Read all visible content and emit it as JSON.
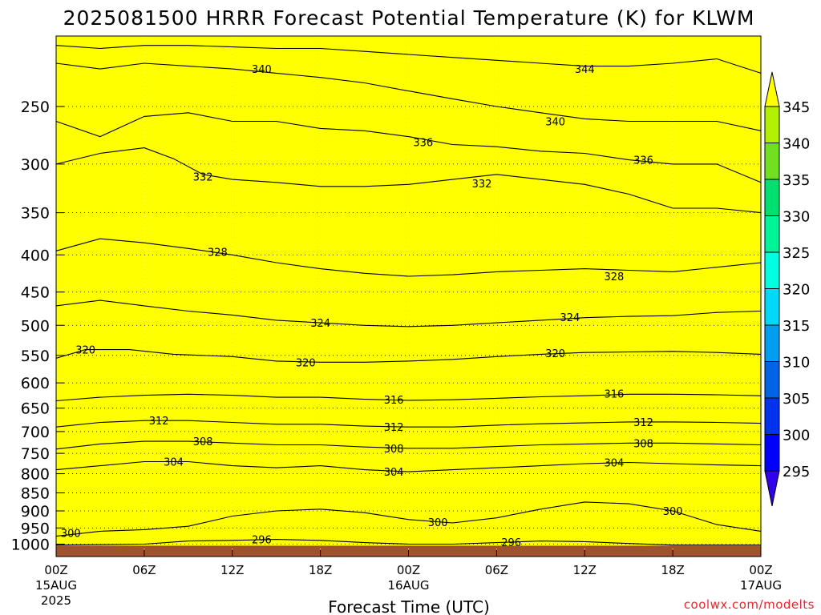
{
  "chart_data": {
    "type": "heatmap",
    "title": "2025081500 HRRR Forecast Potential Temperature (K) for KLWM",
    "xlabel": "Forecast Time (UTC)",
    "ylabel": "",
    "credit": "coolwx.com/modelts",
    "x_ticks": [
      {
        "hour": 0,
        "label": "00Z",
        "sub1": "15AUG",
        "sub2": "2025"
      },
      {
        "hour": 6,
        "label": "06Z",
        "sub1": "",
        "sub2": ""
      },
      {
        "hour": 12,
        "label": "12Z",
        "sub1": "",
        "sub2": ""
      },
      {
        "hour": 18,
        "label": "18Z",
        "sub1": "",
        "sub2": ""
      },
      {
        "hour": 24,
        "label": "00Z",
        "sub1": "16AUG",
        "sub2": ""
      },
      {
        "hour": 30,
        "label": "06Z",
        "sub1": "",
        "sub2": ""
      },
      {
        "hour": 36,
        "label": "12Z",
        "sub1": "",
        "sub2": ""
      },
      {
        "hour": 42,
        "label": "18Z",
        "sub1": "",
        "sub2": ""
      },
      {
        "hour": 48,
        "label": "00Z",
        "sub1": "17AUG",
        "sub2": ""
      }
    ],
    "x_range_hours": [
      0,
      48
    ],
    "y_scale": "log-pressure",
    "y_range_hpa": [
      1040,
      200
    ],
    "y_ticks": [
      250,
      300,
      350,
      400,
      450,
      500,
      550,
      600,
      650,
      700,
      750,
      800,
      850,
      900,
      950,
      1000
    ],
    "grid": true,
    "colorbar": {
      "labels": [
        "345",
        "340",
        "335",
        "330",
        "325",
        "320",
        "315",
        "310",
        "305",
        "300",
        "295"
      ],
      "top_color": "#ffff00",
      "bottom_color": "#3300ee",
      "extend": "both"
    },
    "bands": [
      {
        "low": 0,
        "high": 295,
        "color": "#3300ee"
      },
      {
        "low": 295,
        "high": 300,
        "color": "#0000ff"
      },
      {
        "low": 300,
        "high": 305,
        "color": "#0033ee"
      },
      {
        "low": 305,
        "high": 310,
        "color": "#0064e6"
      },
      {
        "low": 310,
        "high": 315,
        "color": "#009ef0"
      },
      {
        "low": 315,
        "high": 320,
        "color": "#00d8f8"
      },
      {
        "low": 320,
        "high": 325,
        "color": "#00ffe0"
      },
      {
        "low": 325,
        "high": 330,
        "color": "#00f59a"
      },
      {
        "low": 330,
        "high": 335,
        "color": "#00e070"
      },
      {
        "low": 335,
        "high": 340,
        "color": "#70e020"
      },
      {
        "low": 340,
        "high": 345,
        "color": "#b0f000"
      },
      {
        "low": 345,
        "high": 999,
        "color": "#ffff00"
      }
    ],
    "ground_color": "#a0522d",
    "ground_level_hpa": 1005,
    "isentropes": [
      {
        "theta": 296,
        "label": "296",
        "points": [
          [
            0,
            1003
          ],
          [
            6,
            1000
          ],
          [
            9,
            990
          ],
          [
            12,
            988
          ],
          [
            15,
            985
          ],
          [
            18,
            988
          ],
          [
            21,
            995
          ],
          [
            24,
            1000
          ],
          [
            27,
            1000
          ],
          [
            30,
            995
          ],
          [
            33,
            990
          ],
          [
            36,
            992
          ],
          [
            39,
            998
          ],
          [
            42,
            1003
          ],
          [
            48,
            1003
          ]
        ]
      },
      {
        "theta": 300,
        "label": "300",
        "points": [
          [
            0,
            975
          ],
          [
            3,
            960
          ],
          [
            6,
            955
          ],
          [
            9,
            945
          ],
          [
            12,
            915
          ],
          [
            15,
            900
          ],
          [
            18,
            895
          ],
          [
            21,
            905
          ],
          [
            24,
            925
          ],
          [
            27,
            935
          ],
          [
            30,
            920
          ],
          [
            33,
            895
          ],
          [
            36,
            875
          ],
          [
            39,
            880
          ],
          [
            42,
            900
          ],
          [
            45,
            940
          ],
          [
            48,
            960
          ]
        ]
      },
      {
        "theta": 304,
        "label": "304",
        "points": [
          [
            0,
            790
          ],
          [
            3,
            780
          ],
          [
            6,
            770
          ],
          [
            9,
            770
          ],
          [
            12,
            780
          ],
          [
            15,
            785
          ],
          [
            18,
            780
          ],
          [
            21,
            790
          ],
          [
            24,
            795
          ],
          [
            27,
            790
          ],
          [
            30,
            785
          ],
          [
            33,
            780
          ],
          [
            36,
            775
          ],
          [
            39,
            772
          ],
          [
            42,
            775
          ],
          [
            45,
            778
          ],
          [
            48,
            780
          ]
        ]
      },
      {
        "theta": 308,
        "label": "308",
        "points": [
          [
            0,
            740
          ],
          [
            3,
            728
          ],
          [
            6,
            722
          ],
          [
            9,
            722
          ],
          [
            12,
            726
          ],
          [
            15,
            730
          ],
          [
            18,
            730
          ],
          [
            21,
            735
          ],
          [
            24,
            738
          ],
          [
            27,
            738
          ],
          [
            30,
            734
          ],
          [
            33,
            730
          ],
          [
            36,
            728
          ],
          [
            39,
            726
          ],
          [
            42,
            726
          ],
          [
            45,
            728
          ],
          [
            48,
            730
          ]
        ]
      },
      {
        "theta": 312,
        "label": "312",
        "points": [
          [
            0,
            690
          ],
          [
            3,
            680
          ],
          [
            6,
            676
          ],
          [
            9,
            676
          ],
          [
            12,
            680
          ],
          [
            15,
            684
          ],
          [
            18,
            684
          ],
          [
            21,
            688
          ],
          [
            24,
            690
          ],
          [
            27,
            690
          ],
          [
            30,
            686
          ],
          [
            33,
            683
          ],
          [
            36,
            681
          ],
          [
            39,
            679
          ],
          [
            42,
            679
          ],
          [
            45,
            680
          ],
          [
            48,
            682
          ]
        ]
      },
      {
        "theta": 316,
        "label": "316",
        "points": [
          [
            0,
            635
          ],
          [
            3,
            628
          ],
          [
            6,
            624
          ],
          [
            9,
            622
          ],
          [
            12,
            624
          ],
          [
            15,
            628
          ],
          [
            18,
            628
          ],
          [
            21,
            632
          ],
          [
            24,
            634
          ],
          [
            27,
            633
          ],
          [
            30,
            630
          ],
          [
            33,
            627
          ],
          [
            36,
            625
          ],
          [
            39,
            622
          ],
          [
            42,
            622
          ],
          [
            45,
            623
          ],
          [
            48,
            625
          ]
        ]
      },
      {
        "theta": 320,
        "label": "320",
        "points": [
          [
            0,
            555
          ],
          [
            2,
            540
          ],
          [
            5,
            540
          ],
          [
            8,
            548
          ],
          [
            12,
            552
          ],
          [
            15,
            560
          ],
          [
            18,
            562
          ],
          [
            21,
            562
          ],
          [
            24,
            560
          ],
          [
            27,
            557
          ],
          [
            30,
            552
          ],
          [
            33,
            548
          ],
          [
            36,
            545
          ],
          [
            39,
            544
          ],
          [
            42,
            543
          ],
          [
            45,
            545
          ],
          [
            48,
            548
          ]
        ]
      },
      {
        "theta": 324,
        "label": "324",
        "points": [
          [
            0,
            470
          ],
          [
            3,
            462
          ],
          [
            6,
            470
          ],
          [
            9,
            478
          ],
          [
            12,
            484
          ],
          [
            15,
            492
          ],
          [
            18,
            496
          ],
          [
            21,
            500
          ],
          [
            24,
            502
          ],
          [
            27,
            500
          ],
          [
            30,
            496
          ],
          [
            33,
            492
          ],
          [
            36,
            488
          ],
          [
            39,
            486
          ],
          [
            42,
            485
          ],
          [
            45,
            480
          ],
          [
            48,
            478
          ]
        ]
      },
      {
        "theta": 328,
        "label": "328",
        "points": [
          [
            0,
            395
          ],
          [
            3,
            380
          ],
          [
            6,
            385
          ],
          [
            9,
            392
          ],
          [
            12,
            400
          ],
          [
            15,
            410
          ],
          [
            18,
            418
          ],
          [
            21,
            424
          ],
          [
            24,
            428
          ],
          [
            27,
            426
          ],
          [
            30,
            422
          ],
          [
            33,
            420
          ],
          [
            36,
            418
          ],
          [
            39,
            420
          ],
          [
            42,
            422
          ],
          [
            45,
            416
          ],
          [
            48,
            410
          ]
        ]
      },
      {
        "theta": 332,
        "label": "332",
        "points": [
          [
            0,
            300
          ],
          [
            3,
            290
          ],
          [
            6,
            285
          ],
          [
            8,
            295
          ],
          [
            10,
            310
          ],
          [
            12,
            315
          ],
          [
            15,
            318
          ],
          [
            18,
            322
          ],
          [
            21,
            322
          ],
          [
            24,
            320
          ],
          [
            27,
            315
          ],
          [
            30,
            310
          ],
          [
            33,
            315
          ],
          [
            36,
            320
          ],
          [
            39,
            330
          ],
          [
            42,
            345
          ],
          [
            45,
            345
          ],
          [
            48,
            350
          ]
        ]
      },
      {
        "theta": 336,
        "label": "336",
        "points": [
          [
            0,
            262
          ],
          [
            3,
            275
          ],
          [
            6,
            258
          ],
          [
            9,
            255
          ],
          [
            12,
            262
          ],
          [
            15,
            262
          ],
          [
            18,
            268
          ],
          [
            21,
            270
          ],
          [
            24,
            275
          ],
          [
            27,
            282
          ],
          [
            30,
            284
          ],
          [
            33,
            288
          ],
          [
            36,
            290
          ],
          [
            39,
            296
          ],
          [
            42,
            300
          ],
          [
            45,
            300
          ],
          [
            48,
            318
          ]
        ]
      },
      {
        "theta": 340,
        "label": "340",
        "points": [
          [
            0,
            218
          ],
          [
            3,
            222
          ],
          [
            6,
            218
          ],
          [
            9,
            220
          ],
          [
            12,
            222
          ],
          [
            15,
            225
          ],
          [
            18,
            228
          ],
          [
            21,
            232
          ],
          [
            24,
            238
          ],
          [
            27,
            244
          ],
          [
            30,
            250
          ],
          [
            33,
            255
          ],
          [
            36,
            260
          ],
          [
            39,
            262
          ],
          [
            42,
            262
          ],
          [
            45,
            262
          ],
          [
            48,
            270
          ]
        ]
      },
      {
        "theta": 344,
        "label": "344",
        "points": [
          [
            0,
            206
          ],
          [
            3,
            208
          ],
          [
            6,
            206
          ],
          [
            9,
            206
          ],
          [
            12,
            207
          ],
          [
            15,
            208
          ],
          [
            18,
            208
          ],
          [
            21,
            210
          ],
          [
            24,
            212
          ],
          [
            27,
            214
          ],
          [
            30,
            216
          ],
          [
            33,
            218
          ],
          [
            36,
            220
          ],
          [
            39,
            220
          ],
          [
            42,
            218
          ],
          [
            45,
            215
          ],
          [
            48,
            225
          ]
        ]
      }
    ],
    "contour_labels": [
      {
        "text": "340",
        "hour": 14.0,
        "hpa": 222
      },
      {
        "text": "344",
        "hour": 36.0,
        "hpa": 222
      },
      {
        "text": "340",
        "hour": 34.0,
        "hpa": 262
      },
      {
        "text": "336",
        "hour": 25.0,
        "hpa": 280
      },
      {
        "text": "336",
        "hour": 40.0,
        "hpa": 296
      },
      {
        "text": "332",
        "hour": 10.0,
        "hpa": 312
      },
      {
        "text": "332",
        "hour": 29.0,
        "hpa": 319
      },
      {
        "text": "328",
        "hour": 11.0,
        "hpa": 396
      },
      {
        "text": "328",
        "hour": 38.0,
        "hpa": 428
      },
      {
        "text": "324",
        "hour": 18.0,
        "hpa": 496
      },
      {
        "text": "324",
        "hour": 35.0,
        "hpa": 487
      },
      {
        "text": "320",
        "hour": 2.0,
        "hpa": 540
      },
      {
        "text": "320",
        "hour": 17.0,
        "hpa": 562
      },
      {
        "text": "320",
        "hour": 34.0,
        "hpa": 546
      },
      {
        "text": "316",
        "hour": 23.0,
        "hpa": 633
      },
      {
        "text": "316",
        "hour": 38.0,
        "hpa": 621
      },
      {
        "text": "312",
        "hour": 7.0,
        "hpa": 676
      },
      {
        "text": "312",
        "hour": 23.0,
        "hpa": 690
      },
      {
        "text": "312",
        "hour": 40.0,
        "hpa": 679
      },
      {
        "text": "308",
        "hour": 10.0,
        "hpa": 722
      },
      {
        "text": "308",
        "hour": 23.0,
        "hpa": 738
      },
      {
        "text": "308",
        "hour": 40.0,
        "hpa": 726
      },
      {
        "text": "304",
        "hour": 8.0,
        "hpa": 770
      },
      {
        "text": "304",
        "hour": 23.0,
        "hpa": 795
      },
      {
        "text": "304",
        "hour": 38.0,
        "hpa": 772
      },
      {
        "text": "300",
        "hour": 1.0,
        "hpa": 965
      },
      {
        "text": "300",
        "hour": 26.0,
        "hpa": 932
      },
      {
        "text": "300",
        "hour": 42.0,
        "hpa": 900
      },
      {
        "text": "296",
        "hour": 14.0,
        "hpa": 985
      },
      {
        "text": "296",
        "hour": 31.0,
        "hpa": 994
      }
    ]
  }
}
